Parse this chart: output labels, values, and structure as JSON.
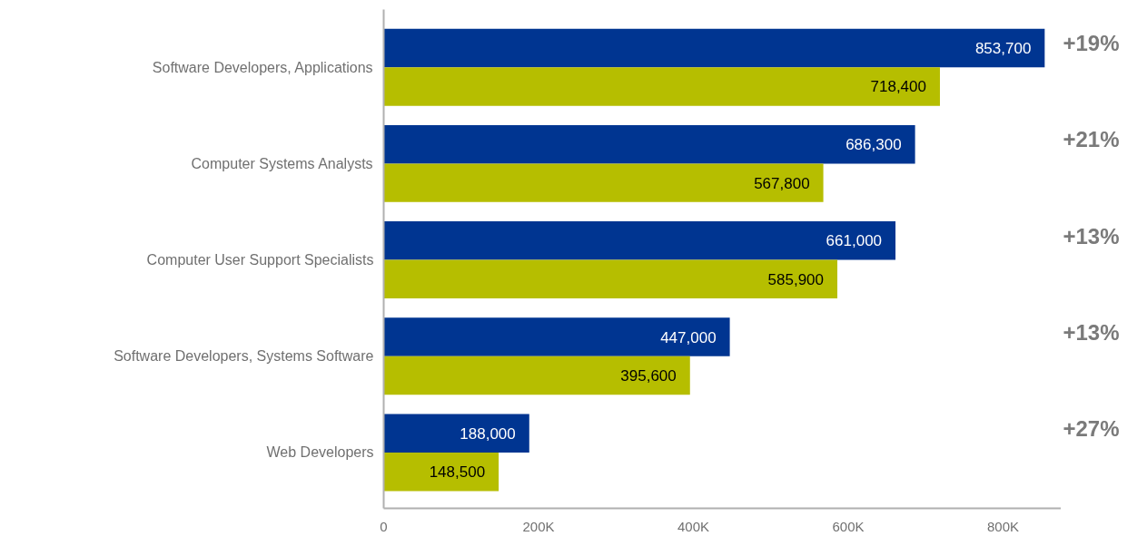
{
  "chart_data": {
    "type": "bar",
    "orientation": "horizontal",
    "categories": [
      "Software Developers, Applications",
      "Computer Systems Analysts",
      "Computer User Support Specialists",
      "Software Developers, Systems Software",
      "Web Developers"
    ],
    "series": [
      {
        "color": "#003591",
        "values": [
          853700,
          686300,
          661000,
          447000,
          188000
        ],
        "value_labels": [
          "853,700",
          "686,300",
          "661,000",
          "447,000",
          "188,000"
        ]
      },
      {
        "color": "#b6be00",
        "values": [
          718400,
          567800,
          585900,
          395600,
          148500
        ],
        "value_labels": [
          "718,400",
          "567,800",
          "585,900",
          "395,600",
          "148,500"
        ]
      }
    ],
    "xlim": [
      0,
      875000
    ],
    "xticks": [
      0,
      {
        "value": 200000,
        "label": "200K"
      },
      {
        "value": 400000,
        "label": "400K"
      },
      {
        "value": 600000,
        "label": "600K"
      },
      {
        "value": 800000,
        "label": "800K"
      }
    ],
    "grid": false,
    "annotations": [
      "+19%",
      "+21%",
      "+13%",
      "+13%",
      "+27%"
    ]
  }
}
